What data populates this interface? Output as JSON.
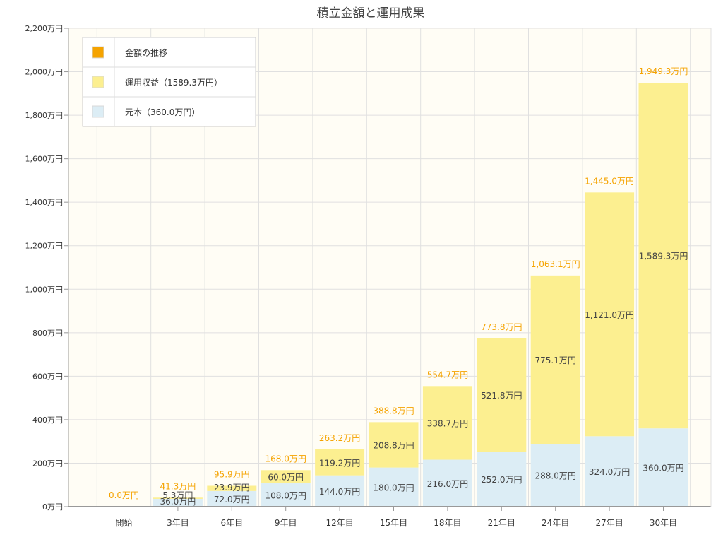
{
  "chart_data": {
    "type": "bar",
    "title": "積立金額と運用成果",
    "categories": [
      "開始",
      "3年目",
      "6年目",
      "9年目",
      "12年目",
      "15年目",
      "18年目",
      "21年目",
      "24年目",
      "27年目",
      "30年目"
    ],
    "series": [
      {
        "name": "元本（360.0万円）",
        "color": "#dcedf5",
        "values": [
          0,
          36.0,
          72.0,
          108.0,
          144.0,
          180.0,
          216.0,
          252.0,
          288.0,
          324.0,
          360.0
        ]
      },
      {
        "name": "運用収益（1589.3万円）",
        "color": "#fcef90",
        "values": [
          0,
          5.3,
          23.9,
          60.0,
          119.2,
          208.8,
          338.7,
          521.8,
          775.1,
          1121.0,
          1589.3
        ]
      }
    ],
    "segment_labels": {
      "principal": [
        "",
        "36.0万円",
        "72.0万円",
        "108.0万円",
        "144.0万円",
        "180.0万円",
        "216.0万円",
        "252.0万円",
        "288.0万円",
        "324.0万円",
        "360.0万円"
      ],
      "gain": [
        "",
        "5.3万円",
        "23.9万円",
        "60.0万円",
        "119.2万円",
        "208.8万円",
        "338.7万円",
        "521.8万円",
        "775.1万円",
        "1,121.0万円",
        "1,589.3万円"
      ]
    },
    "totals": [
      0.0,
      41.3,
      95.9,
      168.0,
      263.2,
      388.8,
      554.7,
      773.8,
      1063.1,
      1445.0,
      1949.3
    ],
    "total_labels": [
      "0.0万円",
      "41.3万円",
      "95.9万円",
      "168.0万円",
      "263.2万円",
      "388.8万円",
      "554.7万円",
      "773.8万円",
      "1,063.1万円",
      "1,445.0万円",
      "1,949.3万円"
    ],
    "total_label_color": "#f5a300",
    "legend": [
      {
        "name": "金額の推移",
        "color": "#f5a300"
      },
      {
        "name": "運用収益（1589.3万円）",
        "color": "#fcef90"
      },
      {
        "name": "元本（360.0万円）",
        "color": "#dcedf5"
      }
    ],
    "legend_position": "top-left",
    "ylim": [
      0,
      2200
    ],
    "yticks": [
      0,
      200,
      400,
      600,
      800,
      1000,
      1200,
      1400,
      1600,
      1800,
      2000,
      2200
    ],
    "ytick_labels": [
      "0万円",
      "200万円",
      "400万円",
      "600万円",
      "800万円",
      "1,000万円",
      "1,200万円",
      "1,400万円",
      "1,600万円",
      "1,800万円",
      "2,000万円",
      "2,200万円"
    ],
    "grid": true,
    "plot_background": "#fffdf5"
  }
}
